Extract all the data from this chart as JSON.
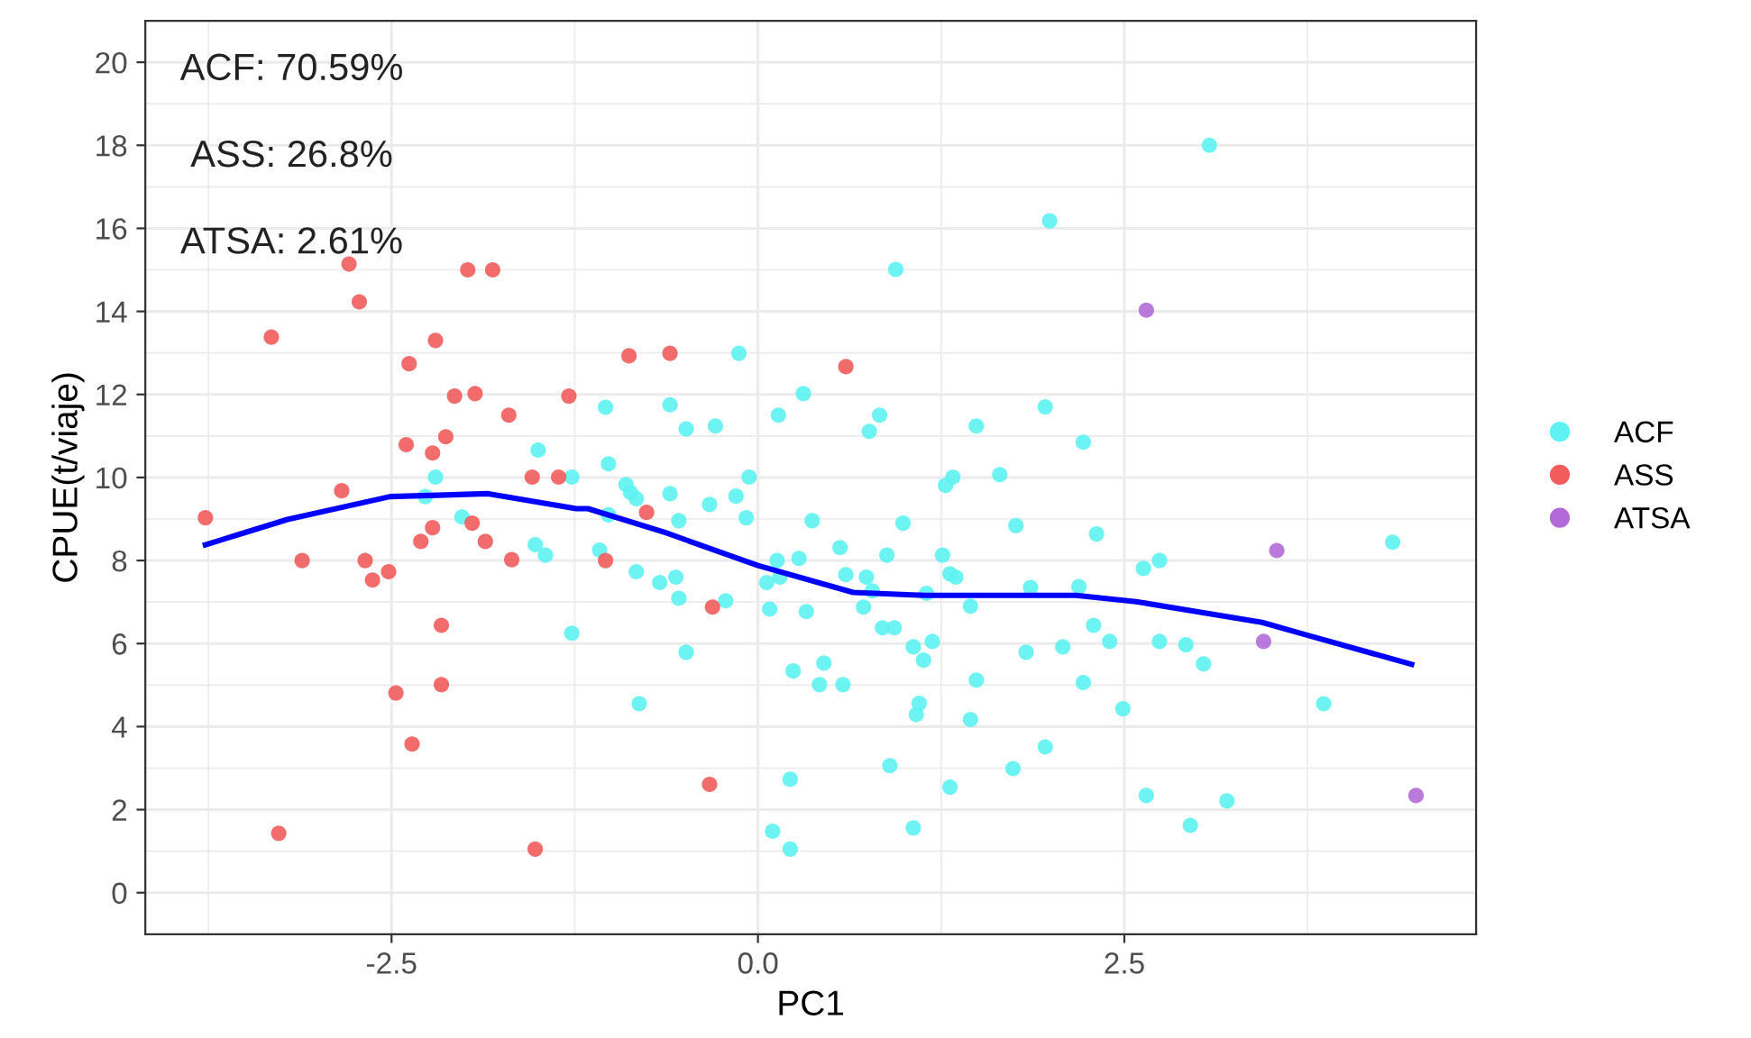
{
  "chart_data": {
    "type": "scatter",
    "xlabel": "PC1",
    "ylabel": "CPUE(t/viaje)",
    "annotations": [
      "ACF: 70.59%",
      "ASS: 26.8%",
      "ATSA: 2.61%"
    ],
    "xlim": [
      -4.18,
      4.9
    ],
    "ylim": [
      -1,
      21
    ],
    "xticks": [
      -2.5,
      {
        "value": 0,
        "label": "0.0"
      },
      2.5
    ],
    "yticks": [
      0,
      2,
      4,
      6,
      8,
      10,
      12,
      14,
      16,
      18,
      20
    ],
    "grid": true,
    "legend": "right",
    "marker": "circle",
    "series": [
      {
        "name": "ACF",
        "color": "#5ef2f2",
        "x": [
          -1.5,
          -2.2,
          -1.27,
          -2.27,
          -2.02,
          -1.52,
          -1.45,
          -1.27,
          0.94,
          -0.13,
          0.31,
          0.14,
          0.83,
          0.76,
          -1.04,
          -0.6,
          -0.49,
          -0.29,
          -1.02,
          -0.9,
          -0.87,
          -0.83,
          -0.6,
          -0.15,
          -0.06,
          -1.02,
          -0.54,
          -0.33,
          -0.08,
          0.37,
          0.99,
          -1.08,
          -0.83,
          -0.67,
          -0.56,
          -0.54,
          -0.22,
          0.13,
          0.06,
          0.15,
          0.28,
          0.56,
          0.08,
          0.33,
          0.6,
          0.74,
          0.78,
          0.72,
          0.88,
          0.85,
          0.93,
          1.06,
          1.13,
          1.19,
          -0.49,
          0.24,
          0.45,
          0.42,
          0.58,
          1.1,
          1.08,
          -0.81,
          0.9,
          0.22,
          0.1,
          0.22,
          1.06,
          1.15,
          3.08,
          1.99,
          1.96,
          1.49,
          2.22,
          1.33,
          1.28,
          1.65,
          1.76,
          2.31,
          1.26,
          1.31,
          1.35,
          1.86,
          2.19,
          1.45,
          2.29,
          2.4,
          1.83,
          2.08,
          1.49,
          2.22,
          1.45,
          2.49,
          1.96,
          1.74,
          1.31,
          2.63,
          2.74,
          2.74,
          2.92,
          3.04,
          4.33,
          3.86,
          2.65,
          2.95,
          3.2
        ],
        "values": [
          10.66,
          10.01,
          10.01,
          9.54,
          9.05,
          8.38,
          8.13,
          6.25,
          15.01,
          12.99,
          12.02,
          11.5,
          11.5,
          11.11,
          11.69,
          11.75,
          11.17,
          11.24,
          10.33,
          9.83,
          9.64,
          9.49,
          9.61,
          9.55,
          10.01,
          9.1,
          8.96,
          9.35,
          9.03,
          8.96,
          8.9,
          8.25,
          7.73,
          7.47,
          7.6,
          7.09,
          7.03,
          8.0,
          7.47,
          7.6,
          8.05,
          8.31,
          6.83,
          6.77,
          7.66,
          7.6,
          7.27,
          6.88,
          8.13,
          6.38,
          6.38,
          5.92,
          5.6,
          6.05,
          5.79,
          5.34,
          5.53,
          5.01,
          5.01,
          4.56,
          4.29,
          4.55,
          3.06,
          2.73,
          1.48,
          1.05,
          1.56,
          7.21,
          18.0,
          16.18,
          11.7,
          11.24,
          10.85,
          10.01,
          9.81,
          10.07,
          8.84,
          8.64,
          8.13,
          7.68,
          7.6,
          7.35,
          7.37,
          6.9,
          6.44,
          6.05,
          5.79,
          5.92,
          5.12,
          5.06,
          4.17,
          4.43,
          3.51,
          2.99,
          2.54,
          7.81,
          8.0,
          6.05,
          5.97,
          5.51,
          8.44,
          4.55,
          2.34,
          1.62,
          2.21
        ]
      },
      {
        "name": "ASS",
        "color": "#f25c5c",
        "x": [
          -2.79,
          -1.98,
          -1.81,
          -2.72,
          -3.32,
          -2.2,
          -2.38,
          -2.07,
          -1.93,
          -1.7,
          -1.29,
          -2.4,
          -2.13,
          -2.22,
          -1.54,
          -1.36,
          -2.84,
          -3.77,
          -1.95,
          -2.22,
          -2.3,
          -1.86,
          -3.11,
          -2.68,
          -2.63,
          -2.52,
          -1.68,
          -2.16,
          -2.47,
          -2.16,
          -2.36,
          -3.27,
          -1.52,
          -0.88,
          -0.6,
          -0.76,
          -1.04,
          -0.31,
          -0.33,
          0.6
        ],
        "values": [
          15.14,
          15.0,
          15.0,
          14.23,
          13.38,
          13.3,
          12.74,
          11.96,
          12.02,
          11.5,
          11.96,
          10.79,
          10.98,
          10.59,
          10.01,
          10.01,
          9.68,
          9.03,
          8.9,
          8.79,
          8.46,
          8.46,
          8.0,
          8.0,
          7.53,
          7.73,
          8.02,
          6.44,
          4.81,
          5.01,
          3.58,
          1.43,
          1.05,
          12.93,
          12.99,
          9.16,
          8.0,
          6.88,
          2.61,
          12.67
        ]
      },
      {
        "name": "ATSA",
        "color": "#b36ad9",
        "x": [
          2.65,
          3.54,
          3.45,
          4.49
        ],
        "values": [
          14.03,
          8.24,
          6.05,
          2.34
        ]
      },
      {
        "type": "line",
        "color": "#0000ff",
        "line_style": "solid",
        "marker": "none",
        "x": [
          -3.77,
          -3.21,
          -2.51,
          -1.84,
          -1.24,
          -1.16,
          -0.63,
          0.0,
          0.65,
          1.14,
          2.17,
          2.58,
          3.44,
          3.73,
          4.46
        ],
        "values": [
          8.38,
          8.99,
          9.54,
          9.61,
          9.25,
          9.25,
          8.67,
          7.88,
          7.23,
          7.16,
          7.16,
          7.01,
          6.51,
          6.22,
          5.5
        ]
      }
    ]
  }
}
